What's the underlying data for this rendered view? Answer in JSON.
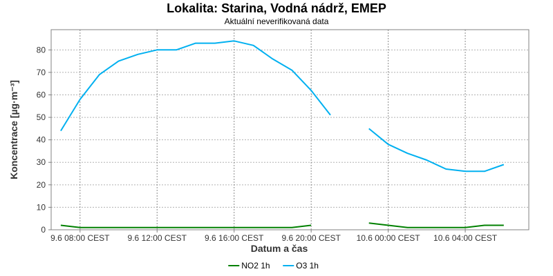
{
  "chart_data": {
    "type": "line",
    "title": "Lokalita: Starina, Vodná nádrž, EMEP",
    "subtitle": "Aktuální neverifikovaná data",
    "xlabel": "Datum a čas",
    "ylabel": "Koncentrace [µg·m⁻³]",
    "ylim": [
      0,
      89
    ],
    "yticks": [
      0,
      10,
      20,
      30,
      40,
      50,
      60,
      70,
      80
    ],
    "xlim": [
      "9.6 07:00",
      "10.6 07:00"
    ],
    "xticks": [
      "9.6 08:00 CEST",
      "9.6 12:00 CEST",
      "9.6 16:00 CEST",
      "9.6 20:00 CEST",
      "10.6 00:00 CEST",
      "10.6 04:00 CEST"
    ],
    "x": [
      "9.6 07:00",
      "9.6 08:00",
      "9.6 09:00",
      "9.6 10:00",
      "9.6 11:00",
      "9.6 12:00",
      "9.6 13:00",
      "9.6 14:00",
      "9.6 15:00",
      "9.6 16:00",
      "9.6 17:00",
      "9.6 18:00",
      "9.6 19:00",
      "9.6 20:00",
      "9.6 21:00",
      "9.6 22:00",
      "9.6 23:00",
      "10.6 00:00",
      "10.6 01:00",
      "10.6 02:00",
      "10.6 03:00",
      "10.6 04:00",
      "10.6 05:00",
      "10.6 06:00"
    ],
    "grid": true,
    "legend_position": "bottom-center",
    "series": [
      {
        "name": "NO2 1h",
        "color": "#008000",
        "values": [
          2,
          1,
          1,
          1,
          1,
          1,
          1,
          1,
          1,
          1,
          1,
          1,
          1,
          2,
          null,
          null,
          3,
          2,
          1,
          1,
          1,
          1,
          2,
          2
        ]
      },
      {
        "name": "O3 1h",
        "color": "#00b0f0",
        "values": [
          44,
          58,
          69,
          75,
          78,
          80,
          80,
          83,
          83,
          84,
          82,
          76,
          71,
          62,
          51,
          null,
          45,
          38,
          34,
          31,
          27,
          26,
          26,
          29
        ]
      }
    ]
  }
}
